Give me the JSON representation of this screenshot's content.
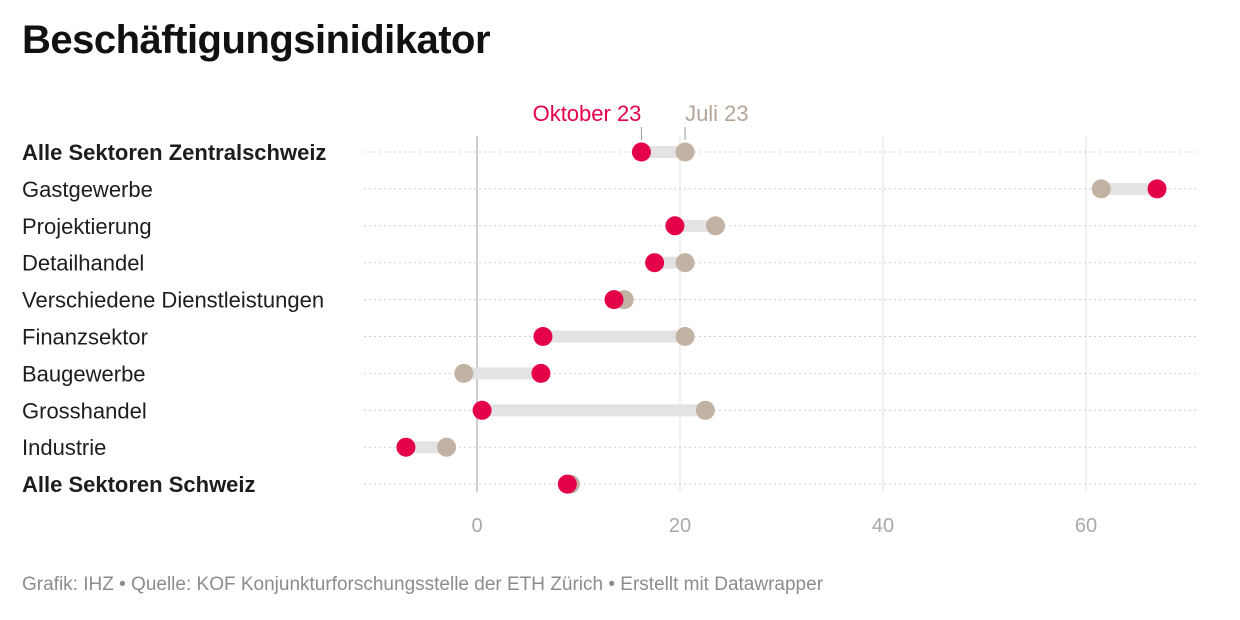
{
  "title": "Beschäftigungsinidikator",
  "footer": "Grafik: IHZ • Quelle: KOF Konjunkturforschungsstelle der ETH Zürich • Erstellt mit Datawrapper",
  "colors": {
    "oktober": "#e5004a",
    "juli": "#c2b2a3",
    "connector": "#e3e3e3",
    "grid": "#e6e6e6",
    "zero": "#bdbdbd"
  },
  "chart_data": {
    "type": "dot-range",
    "title": "Beschäftigungsinidikator",
    "xlim": [
      -11,
      71
    ],
    "x_ticks": [
      0,
      20,
      40,
      60
    ],
    "grid": true,
    "legend_placement": "top",
    "series": [
      {
        "name": "Oktober 23",
        "color": "#e5004a"
      },
      {
        "name": "Juli 23",
        "color": "#c2b2a3"
      }
    ],
    "categories": [
      {
        "label": "Alle Sektoren Zentralschweiz",
        "bold": true,
        "oktober": 16.2,
        "juli": 20.5
      },
      {
        "label": "Gastgewerbe",
        "bold": false,
        "oktober": 67.0,
        "juli": 61.5
      },
      {
        "label": "Projektierung",
        "bold": false,
        "oktober": 19.5,
        "juli": 23.5
      },
      {
        "label": "Detailhandel",
        "bold": false,
        "oktober": 17.5,
        "juli": 20.5
      },
      {
        "label": "Verschiedene Dienstleistungen",
        "bold": false,
        "oktober": 13.5,
        "juli": 14.5
      },
      {
        "label": "Finanzsektor",
        "bold": false,
        "oktober": 6.5,
        "juli": 20.5
      },
      {
        "label": "Baugewerbe",
        "bold": false,
        "oktober": 6.3,
        "juli": -1.3
      },
      {
        "label": "Grosshandel",
        "bold": false,
        "oktober": 0.5,
        "juli": 22.5
      },
      {
        "label": "Industrie",
        "bold": false,
        "oktober": -7.0,
        "juli": -3.0
      },
      {
        "label": "Alle Sektoren Schweiz",
        "bold": true,
        "oktober": 8.9,
        "juli": 9.2
      }
    ]
  }
}
